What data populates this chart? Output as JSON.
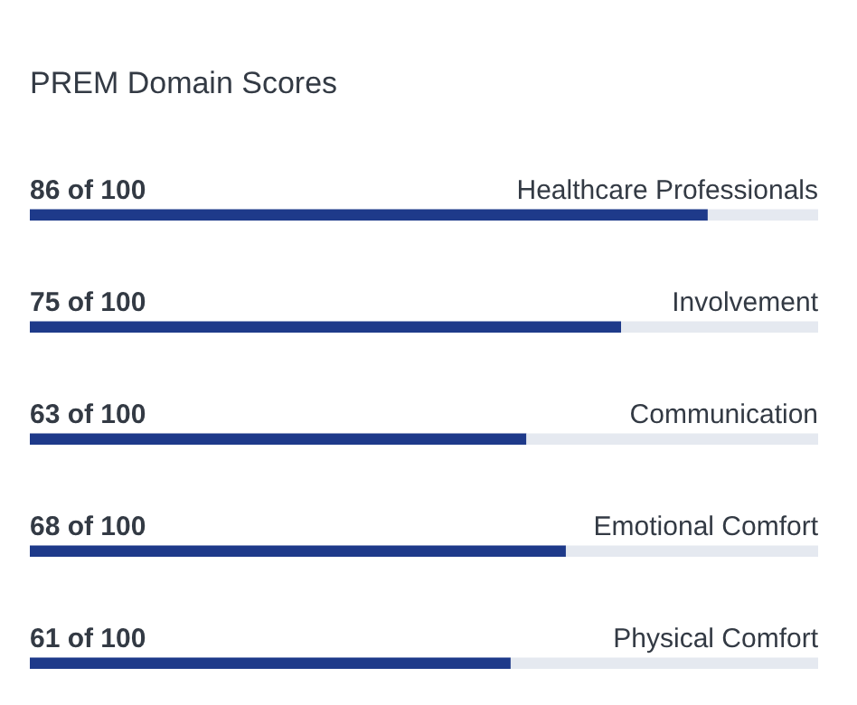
{
  "chart_data": {
    "type": "bar",
    "orientation": "horizontal",
    "stacked": true,
    "title": "PREM Domain Scores",
    "categories": [
      "Healthcare Professionals",
      "Involvement",
      "Communication",
      "Emotional Comfort",
      "Physical Comfort"
    ],
    "xlim": [
      0,
      100
    ],
    "tick_labels": false,
    "grid": false,
    "series": [
      {
        "color": "#1e3a8a",
        "values": [
          86,
          75,
          63,
          68,
          61
        ],
        "value_labels": [
          "86 of 100",
          "75 of 100",
          "63 of 100",
          "68 of 100",
          "61 of 100"
        ]
      },
      {
        "color": "#e5e9f0",
        "values": [
          14,
          25,
          37,
          32,
          39
        ]
      }
    ]
  }
}
